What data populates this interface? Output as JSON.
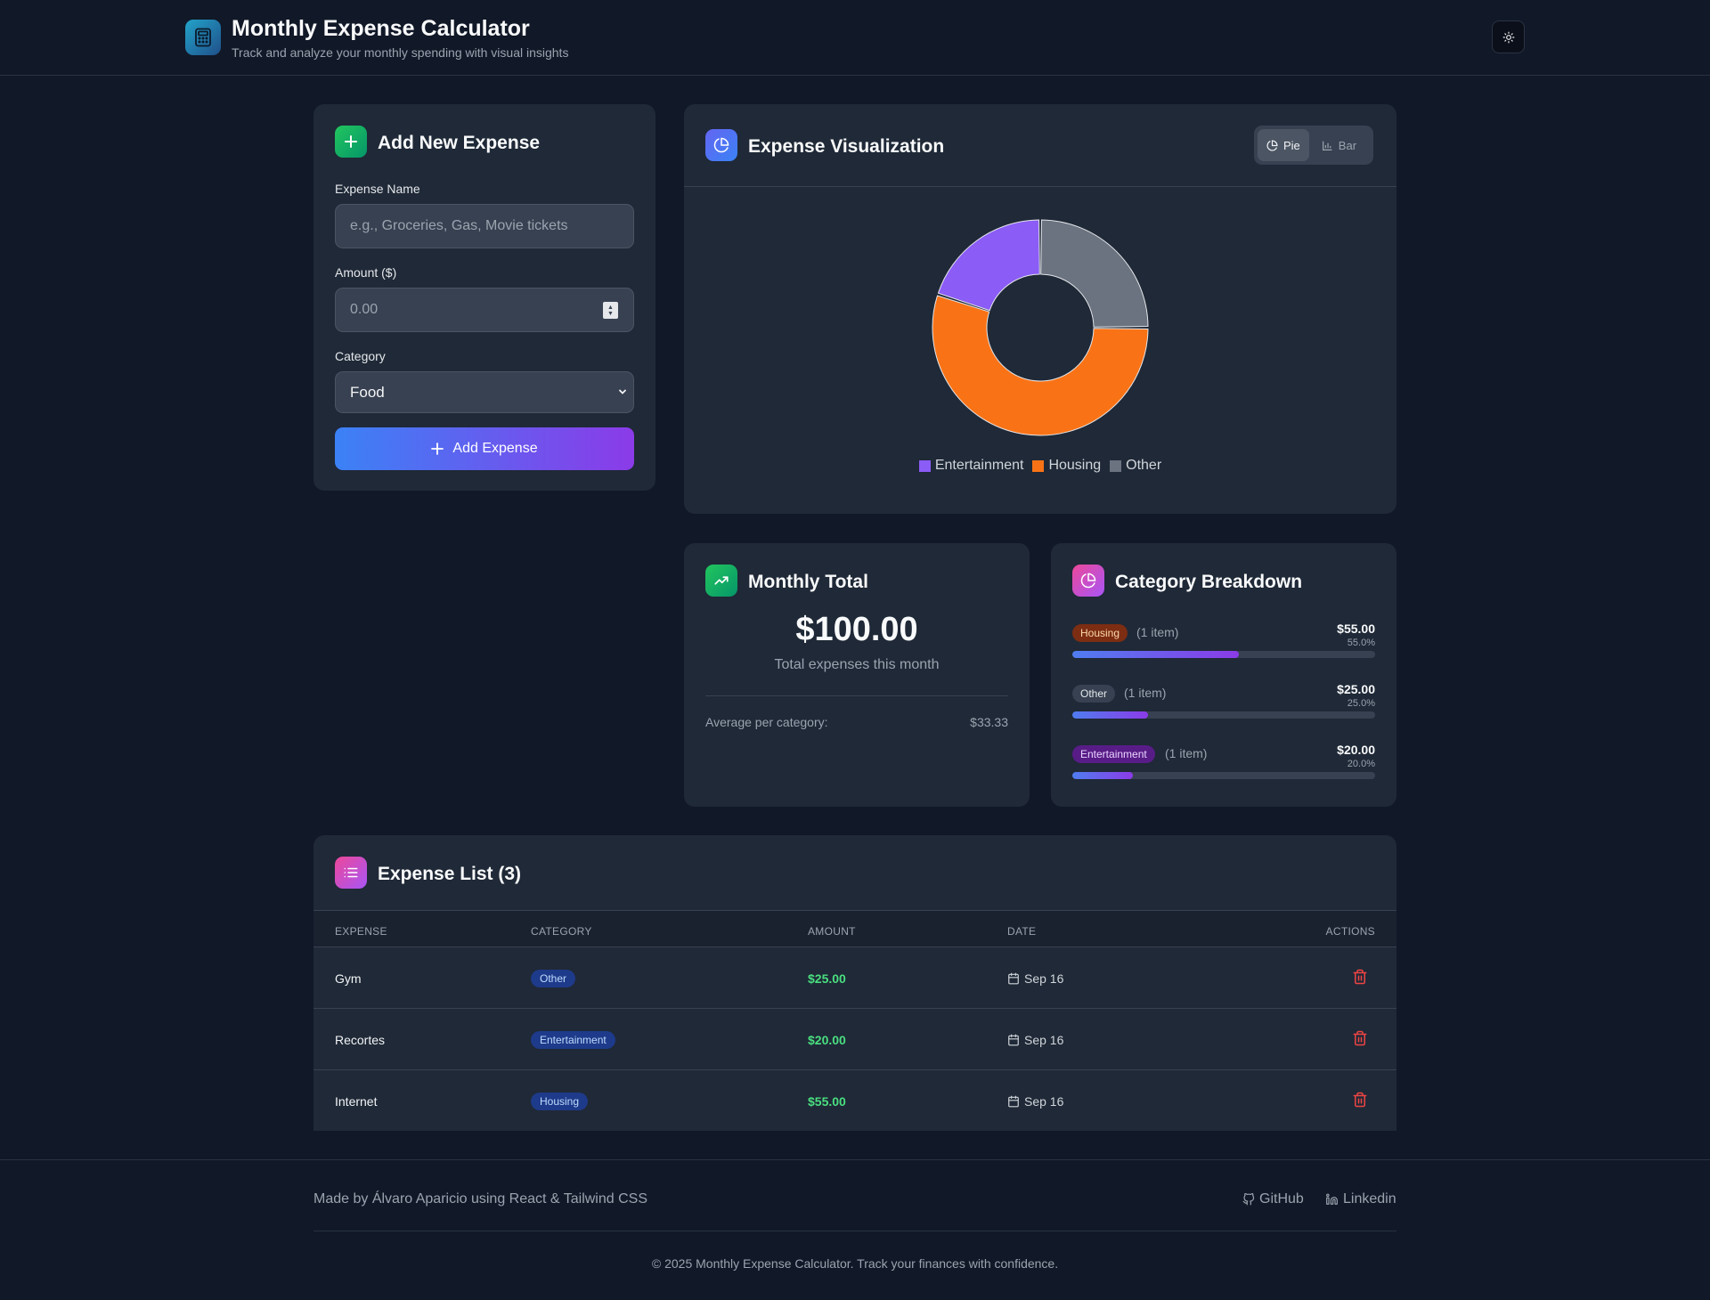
{
  "header": {
    "title": "Monthly Expense Calculator",
    "subtitle": "Track and analyze your monthly spending with visual insights"
  },
  "add_expense": {
    "title": "Add New Expense",
    "name_label": "Expense Name",
    "name_placeholder": "e.g., Groceries, Gas, Movie tickets",
    "amount_label": "Amount ($)",
    "amount_placeholder": "0.00",
    "category_label": "Category",
    "category_selected": "Food",
    "button_label": "Add Expense"
  },
  "visualization": {
    "title": "Expense Visualization",
    "toggle": {
      "pie_label": "Pie",
      "bar_label": "Bar",
      "active": "Pie"
    }
  },
  "chart_data": {
    "type": "pie",
    "style": "donut",
    "categories": [
      "Entertainment",
      "Housing",
      "Other"
    ],
    "values": [
      20,
      55,
      25
    ],
    "colors": [
      "#8b5cf6",
      "#f97316",
      "#6b7280"
    ],
    "legend": "bottom",
    "title": ""
  },
  "monthly_total": {
    "title": "Monthly Total",
    "amount": "$100.00",
    "caption": "Total expenses this month",
    "avg_label": "Average per category:",
    "avg_value": "$33.33"
  },
  "breakdown": {
    "title": "Category Breakdown",
    "items": [
      {
        "badge": "Housing",
        "count": "(1 item)",
        "amount": "$55.00",
        "percent": "55.0%",
        "fraction": 0.55,
        "badge_bg": "#7c2d12",
        "badge_fg": "#fed7aa"
      },
      {
        "badge": "Other",
        "count": "(1 item)",
        "amount": "$25.00",
        "percent": "25.0%",
        "fraction": 0.25,
        "badge_bg": "#374151",
        "badge_fg": "#e5e7eb"
      },
      {
        "badge": "Entertainment",
        "count": "(1 item)",
        "amount": "$20.00",
        "percent": "20.0%",
        "fraction": 0.2,
        "badge_bg": "#581c87",
        "badge_fg": "#e9d5ff"
      }
    ]
  },
  "expense_list": {
    "title": "Expense List (3)",
    "columns": [
      "EXPENSE",
      "CATEGORY",
      "AMOUNT",
      "DATE",
      "ACTIONS"
    ],
    "rows": [
      {
        "name": "Gym",
        "category": "Other",
        "amount": "$25.00",
        "date": "Sep 16"
      },
      {
        "name": "Recortes",
        "category": "Entertainment",
        "amount": "$20.00",
        "date": "Sep 16"
      },
      {
        "name": "Internet",
        "category": "Housing",
        "amount": "$55.00",
        "date": "Sep 16"
      }
    ]
  },
  "footer": {
    "made_by": "Made by Álvaro Aparicio using React & Tailwind CSS",
    "github_label": "GitHub",
    "linkedin_label": "Linkedin",
    "copyright": "© 2025 Monthly Expense Calculator. Track your finances with confidence."
  },
  "icons": {
    "logo": "calculator-icon",
    "theme": "sun-icon",
    "add": "plus-icon",
    "viz": "pie-chart-icon",
    "total": "trending-up-icon",
    "list": "list-icon",
    "date": "calendar-icon",
    "delete": "trash-icon"
  }
}
